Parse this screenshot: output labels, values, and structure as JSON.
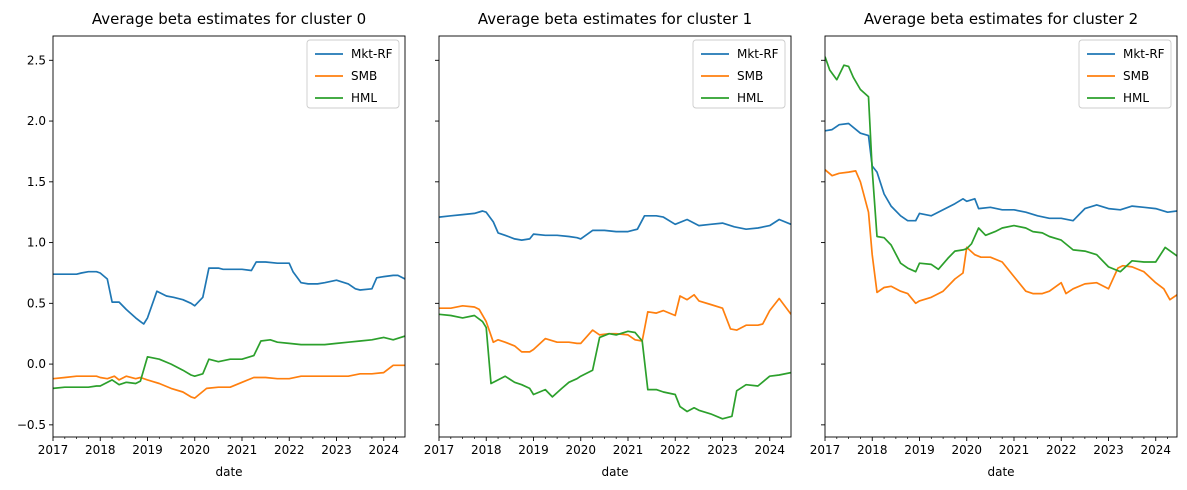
{
  "chart_data": [
    {
      "type": "line",
      "title": "Average beta estimates for cluster 0",
      "xlabel": "date",
      "ylabel": "",
      "xlim": [
        2017.0,
        2024.45
      ],
      "ylim": [
        -0.6,
        2.7
      ],
      "xticks": [
        2017,
        2018,
        2019,
        2020,
        2021,
        2022,
        2023,
        2024
      ],
      "yticks": [
        -0.5,
        0.0,
        0.5,
        1.0,
        1.5,
        2.0,
        2.5
      ],
      "show_yticklabels": true,
      "legend": "top-right",
      "series": [
        {
          "name": "Mkt-RF",
          "color": "#1f77b4",
          "x": [
            2017.0,
            2017.25,
            2017.5,
            2017.6,
            2017.75,
            2017.92,
            2018.0,
            2018.15,
            2018.25,
            2018.4,
            2018.55,
            2018.75,
            2018.85,
            2018.92,
            2019.0,
            2019.2,
            2019.4,
            2019.55,
            2019.75,
            2019.92,
            2020.0,
            2020.17,
            2020.3,
            2020.5,
            2020.6,
            2020.75,
            2021.0,
            2021.2,
            2021.3,
            2021.5,
            2021.75,
            2022.0,
            2022.08,
            2022.25,
            2022.4,
            2022.5,
            2022.6,
            2022.75,
            2023.0,
            2023.25,
            2023.4,
            2023.5,
            2023.75,
            2023.85,
            2024.0,
            2024.2,
            2024.3,
            2024.45
          ],
          "y": [
            0.74,
            0.74,
            0.74,
            0.75,
            0.76,
            0.76,
            0.75,
            0.7,
            0.51,
            0.51,
            0.45,
            0.38,
            0.35,
            0.33,
            0.38,
            0.6,
            0.56,
            0.55,
            0.53,
            0.5,
            0.48,
            0.55,
            0.79,
            0.79,
            0.78,
            0.78,
            0.78,
            0.77,
            0.84,
            0.84,
            0.83,
            0.83,
            0.76,
            0.67,
            0.66,
            0.66,
            0.66,
            0.67,
            0.69,
            0.66,
            0.62,
            0.61,
            0.62,
            0.71,
            0.72,
            0.73,
            0.73,
            0.7
          ]
        },
        {
          "name": "SMB",
          "color": "#ff7f0e",
          "x": [
            2017.0,
            2017.25,
            2017.5,
            2017.75,
            2017.92,
            2018.0,
            2018.15,
            2018.3,
            2018.4,
            2018.55,
            2018.75,
            2018.85,
            2019.0,
            2019.25,
            2019.5,
            2019.75,
            2019.92,
            2020.0,
            2020.25,
            2020.5,
            2020.75,
            2021.0,
            2021.25,
            2021.5,
            2021.75,
            2022.0,
            2022.25,
            2022.5,
            2022.75,
            2023.0,
            2023.25,
            2023.5,
            2023.75,
            2024.0,
            2024.2,
            2024.45
          ],
          "y": [
            -0.12,
            -0.11,
            -0.1,
            -0.1,
            -0.1,
            -0.11,
            -0.12,
            -0.1,
            -0.13,
            -0.1,
            -0.12,
            -0.11,
            -0.13,
            -0.16,
            -0.2,
            -0.23,
            -0.27,
            -0.28,
            -0.2,
            -0.19,
            -0.19,
            -0.15,
            -0.11,
            -0.11,
            -0.12,
            -0.12,
            -0.1,
            -0.1,
            -0.1,
            -0.1,
            -0.1,
            -0.08,
            -0.08,
            -0.07,
            -0.01,
            -0.01
          ]
        },
        {
          "name": "HML",
          "color": "#2ca02c",
          "x": [
            2017.0,
            2017.25,
            2017.5,
            2017.75,
            2017.92,
            2018.0,
            2018.25,
            2018.4,
            2018.55,
            2018.75,
            2018.85,
            2019.0,
            2019.25,
            2019.5,
            2019.75,
            2019.92,
            2020.0,
            2020.17,
            2020.3,
            2020.5,
            2020.75,
            2021.0,
            2021.25,
            2021.4,
            2021.6,
            2021.75,
            2022.0,
            2022.25,
            2022.5,
            2022.75,
            2023.0,
            2023.25,
            2023.5,
            2023.75,
            2024.0,
            2024.2,
            2024.45
          ],
          "y": [
            -0.2,
            -0.19,
            -0.19,
            -0.19,
            -0.18,
            -0.18,
            -0.13,
            -0.17,
            -0.15,
            -0.16,
            -0.14,
            0.06,
            0.04,
            0.0,
            -0.05,
            -0.09,
            -0.1,
            -0.08,
            0.04,
            0.02,
            0.04,
            0.04,
            0.07,
            0.19,
            0.2,
            0.18,
            0.17,
            0.16,
            0.16,
            0.16,
            0.17,
            0.18,
            0.19,
            0.2,
            0.22,
            0.2,
            0.23
          ]
        }
      ]
    },
    {
      "type": "line",
      "title": "Average beta estimates for cluster 1",
      "xlabel": "date",
      "ylabel": "",
      "xlim": [
        2017.0,
        2024.45
      ],
      "ylim": [
        -0.6,
        2.7
      ],
      "xticks": [
        2017,
        2018,
        2019,
        2020,
        2021,
        2022,
        2023,
        2024
      ],
      "yticks": [
        -0.5,
        0.0,
        0.5,
        1.0,
        1.5,
        2.0,
        2.5
      ],
      "show_yticklabels": false,
      "legend": "top-right",
      "series": [
        {
          "name": "Mkt-RF",
          "color": "#1f77b4",
          "x": [
            2017.0,
            2017.25,
            2017.5,
            2017.75,
            2017.92,
            2018.0,
            2018.15,
            2018.25,
            2018.4,
            2018.6,
            2018.75,
            2018.92,
            2019.0,
            2019.25,
            2019.5,
            2019.75,
            2019.92,
            2020.0,
            2020.25,
            2020.5,
            2020.75,
            2021.0,
            2021.2,
            2021.35,
            2021.6,
            2021.75,
            2022.0,
            2022.25,
            2022.5,
            2022.75,
            2023.0,
            2023.25,
            2023.5,
            2023.75,
            2024.0,
            2024.2,
            2024.45
          ],
          "y": [
            1.21,
            1.22,
            1.23,
            1.24,
            1.26,
            1.25,
            1.17,
            1.08,
            1.06,
            1.03,
            1.02,
            1.03,
            1.07,
            1.06,
            1.06,
            1.05,
            1.04,
            1.03,
            1.1,
            1.1,
            1.09,
            1.09,
            1.11,
            1.22,
            1.22,
            1.21,
            1.15,
            1.19,
            1.14,
            1.15,
            1.16,
            1.13,
            1.11,
            1.12,
            1.14,
            1.19,
            1.15
          ]
        },
        {
          "name": "SMB",
          "color": "#ff7f0e",
          "x": [
            2017.0,
            2017.25,
            2017.5,
            2017.75,
            2017.85,
            2018.0,
            2018.15,
            2018.25,
            2018.4,
            2018.6,
            2018.75,
            2018.92,
            2019.0,
            2019.25,
            2019.5,
            2019.75,
            2019.92,
            2020.0,
            2020.25,
            2020.4,
            2020.6,
            2020.75,
            2021.0,
            2021.15,
            2021.3,
            2021.42,
            2021.6,
            2021.75,
            2022.0,
            2022.1,
            2022.25,
            2022.4,
            2022.5,
            2022.75,
            2023.0,
            2023.17,
            2023.3,
            2023.5,
            2023.75,
            2023.85,
            2024.0,
            2024.2,
            2024.45
          ],
          "y": [
            0.46,
            0.46,
            0.48,
            0.47,
            0.45,
            0.35,
            0.18,
            0.2,
            0.18,
            0.15,
            0.1,
            0.1,
            0.12,
            0.21,
            0.18,
            0.18,
            0.17,
            0.17,
            0.28,
            0.24,
            0.25,
            0.25,
            0.24,
            0.2,
            0.19,
            0.43,
            0.42,
            0.44,
            0.4,
            0.56,
            0.53,
            0.57,
            0.52,
            0.49,
            0.46,
            0.29,
            0.28,
            0.32,
            0.32,
            0.33,
            0.44,
            0.54,
            0.41
          ]
        },
        {
          "name": "HML",
          "color": "#2ca02c",
          "x": [
            2017.0,
            2017.25,
            2017.5,
            2017.75,
            2017.92,
            2018.0,
            2018.1,
            2018.25,
            2018.4,
            2018.6,
            2018.75,
            2018.92,
            2019.0,
            2019.25,
            2019.4,
            2019.6,
            2019.75,
            2019.92,
            2020.0,
            2020.25,
            2020.4,
            2020.6,
            2020.75,
            2021.0,
            2021.15,
            2021.3,
            2021.42,
            2021.6,
            2021.75,
            2022.0,
            2022.1,
            2022.25,
            2022.4,
            2022.5,
            2022.75,
            2023.0,
            2023.2,
            2023.3,
            2023.5,
            2023.75,
            2024.0,
            2024.2,
            2024.45
          ],
          "y": [
            0.41,
            0.4,
            0.38,
            0.4,
            0.35,
            0.3,
            -0.16,
            -0.13,
            -0.1,
            -0.15,
            -0.17,
            -0.2,
            -0.25,
            -0.21,
            -0.27,
            -0.2,
            -0.15,
            -0.12,
            -0.1,
            -0.05,
            0.22,
            0.25,
            0.24,
            0.27,
            0.26,
            0.19,
            -0.21,
            -0.21,
            -0.23,
            -0.25,
            -0.35,
            -0.39,
            -0.36,
            -0.38,
            -0.41,
            -0.45,
            -0.43,
            -0.22,
            -0.17,
            -0.18,
            -0.1,
            -0.09,
            -0.07
          ]
        }
      ]
    },
    {
      "type": "line",
      "title": "Average beta estimates for cluster 2",
      "xlabel": "date",
      "ylabel": "",
      "xlim": [
        2017.0,
        2024.45
      ],
      "ylim": [
        -0.6,
        2.7
      ],
      "xticks": [
        2017,
        2018,
        2019,
        2020,
        2021,
        2022,
        2023,
        2024
      ],
      "yticks": [
        -0.5,
        0.0,
        0.5,
        1.0,
        1.5,
        2.0,
        2.5
      ],
      "show_yticklabels": false,
      "legend": "top-right",
      "series": [
        {
          "name": "Mkt-RF",
          "color": "#1f77b4",
          "x": [
            2017.0,
            2017.15,
            2017.3,
            2017.5,
            2017.75,
            2017.92,
            2018.0,
            2018.1,
            2018.25,
            2018.4,
            2018.6,
            2018.75,
            2018.92,
            2019.0,
            2019.25,
            2019.5,
            2019.75,
            2019.92,
            2020.0,
            2020.17,
            2020.25,
            2020.5,
            2020.75,
            2021.0,
            2021.25,
            2021.5,
            2021.75,
            2022.0,
            2022.25,
            2022.5,
            2022.75,
            2023.0,
            2023.25,
            2023.5,
            2023.75,
            2024.0,
            2024.25,
            2024.45
          ],
          "y": [
            1.92,
            1.93,
            1.97,
            1.98,
            1.9,
            1.88,
            1.63,
            1.58,
            1.4,
            1.3,
            1.22,
            1.18,
            1.18,
            1.24,
            1.22,
            1.27,
            1.32,
            1.36,
            1.34,
            1.36,
            1.28,
            1.29,
            1.27,
            1.27,
            1.25,
            1.22,
            1.2,
            1.2,
            1.18,
            1.28,
            1.31,
            1.28,
            1.27,
            1.3,
            1.29,
            1.28,
            1.25,
            1.26
          ]
        },
        {
          "name": "SMB",
          "color": "#ff7f0e",
          "x": [
            2017.0,
            2017.15,
            2017.3,
            2017.5,
            2017.65,
            2017.75,
            2017.92,
            2018.0,
            2018.1,
            2018.25,
            2018.4,
            2018.6,
            2018.75,
            2018.92,
            2019.0,
            2019.25,
            2019.5,
            2019.75,
            2019.92,
            2020.0,
            2020.17,
            2020.3,
            2020.5,
            2020.75,
            2021.0,
            2021.25,
            2021.4,
            2021.6,
            2021.75,
            2022.0,
            2022.1,
            2022.25,
            2022.5,
            2022.75,
            2023.0,
            2023.2,
            2023.3,
            2023.5,
            2023.75,
            2024.0,
            2024.17,
            2024.3,
            2024.45
          ],
          "y": [
            1.6,
            1.55,
            1.57,
            1.58,
            1.59,
            1.5,
            1.25,
            0.9,
            0.59,
            0.63,
            0.64,
            0.6,
            0.58,
            0.5,
            0.52,
            0.55,
            0.6,
            0.7,
            0.75,
            0.96,
            0.9,
            0.88,
            0.88,
            0.84,
            0.72,
            0.6,
            0.58,
            0.58,
            0.6,
            0.67,
            0.58,
            0.62,
            0.66,
            0.67,
            0.62,
            0.79,
            0.81,
            0.8,
            0.76,
            0.67,
            0.62,
            0.53,
            0.57
          ]
        },
        {
          "name": "HML",
          "color": "#2ca02c",
          "x": [
            2017.0,
            2017.1,
            2017.25,
            2017.4,
            2017.5,
            2017.6,
            2017.75,
            2017.92,
            2018.0,
            2018.1,
            2018.25,
            2018.4,
            2018.6,
            2018.75,
            2018.92,
            2019.0,
            2019.25,
            2019.4,
            2019.6,
            2019.75,
            2019.92,
            2020.0,
            2020.1,
            2020.25,
            2020.4,
            2020.6,
            2020.75,
            2021.0,
            2021.25,
            2021.4,
            2021.6,
            2021.75,
            2022.0,
            2022.25,
            2022.5,
            2022.75,
            2023.0,
            2023.25,
            2023.5,
            2023.75,
            2024.0,
            2024.2,
            2024.45
          ],
          "y": [
            2.53,
            2.42,
            2.34,
            2.46,
            2.45,
            2.36,
            2.26,
            2.2,
            1.6,
            1.05,
            1.04,
            0.98,
            0.83,
            0.79,
            0.76,
            0.83,
            0.82,
            0.78,
            0.87,
            0.93,
            0.94,
            0.95,
            0.99,
            1.12,
            1.06,
            1.09,
            1.12,
            1.14,
            1.12,
            1.09,
            1.08,
            1.05,
            1.02,
            0.94,
            0.93,
            0.9,
            0.8,
            0.76,
            0.85,
            0.84,
            0.84,
            0.96,
            0.89
          ]
        }
      ]
    }
  ]
}
